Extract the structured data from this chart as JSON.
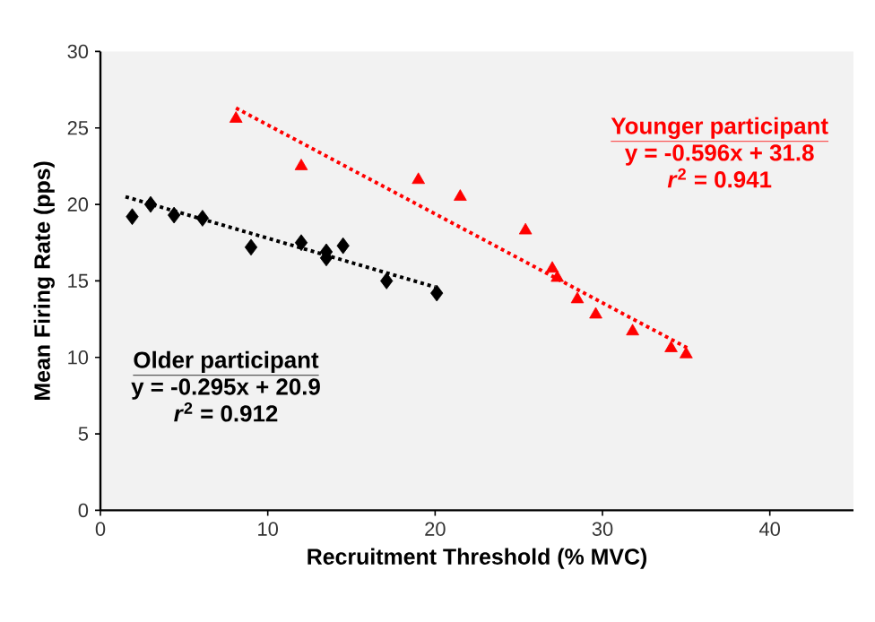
{
  "chart_data": {
    "type": "scatter",
    "xlabel": "Recruitment Threshold (% MVC)",
    "ylabel": "Mean Firing Rate (pps)",
    "xlim": [
      0,
      45
    ],
    "ylim": [
      0,
      30
    ],
    "xticks": [
      0,
      10,
      20,
      30,
      40
    ],
    "yticks": [
      0,
      5,
      10,
      15,
      20,
      25,
      30
    ],
    "grid": false,
    "series": [
      {
        "name": "Older participant",
        "marker": "diamond",
        "color": "#000000",
        "x": [
          1.9,
          3.0,
          4.4,
          6.1,
          9.0,
          12.0,
          13.5,
          13.5,
          14.5,
          17.1,
          20.1
        ],
        "values": [
          19.2,
          20.0,
          19.3,
          19.1,
          17.2,
          17.5,
          16.9,
          16.5,
          17.3,
          15.0,
          14.2
        ]
      },
      {
        "name": "Younger participant",
        "marker": "triangle",
        "color": "#ff0000",
        "x": [
          8.1,
          12.0,
          19.0,
          21.5,
          25.4,
          27.0,
          27.3,
          28.5,
          29.6,
          31.8,
          34.1,
          35.0
        ],
        "values": [
          25.6,
          22.5,
          21.6,
          20.5,
          18.3,
          15.8,
          15.2,
          13.8,
          12.8,
          11.7,
          10.6,
          10.2
        ]
      },
      {
        "type": "line",
        "line_style": "dotted",
        "marker": "none",
        "color": "#000000",
        "x": [
          1.5,
          20
        ],
        "values": [
          20.5,
          14.6
        ]
      },
      {
        "type": "line",
        "line_style": "dotted",
        "marker": "none",
        "color": "#ff0000",
        "x": [
          8.1,
          35.1
        ],
        "values": [
          26.3,
          10.6
        ]
      }
    ],
    "annotations": [
      "y = -0.295x + 20.9",
      "*r*$^{2}$ = 0.912",
      "y = -0.596x + 31.8",
      "*r*$^{2}$ = 0.941"
    ]
  }
}
